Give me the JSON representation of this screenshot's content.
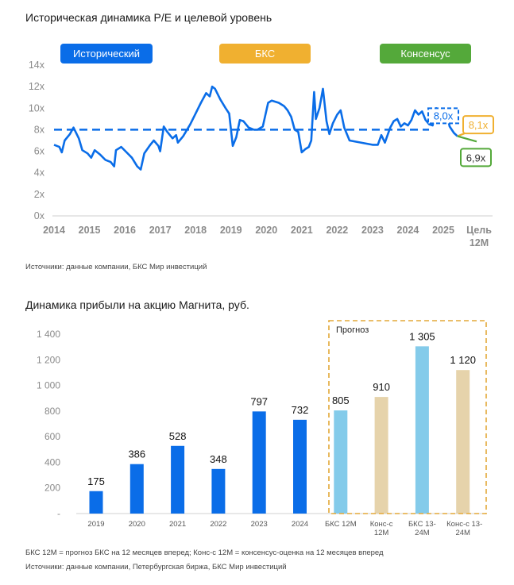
{
  "chart1": {
    "title": "Историческая динамика P/E и целевой уровень",
    "source": "Источники: данные компании, БКС Мир инвестиций",
    "legend": [
      {
        "label": "Исторический",
        "color": "#0a6de8"
      },
      {
        "label": "БКС",
        "color": "#f0b030"
      },
      {
        "label": "Консенсус",
        "color": "#54a93a"
      }
    ],
    "callouts": {
      "current": "8,0x",
      "bks": "8,1x",
      "consensus": "6,9x"
    }
  },
  "chart2": {
    "title": "Динамика прибыли на акцию Магнита, руб.",
    "forecast_label": "Прогноз",
    "notes": [
      "БКС 12М = прогноз БКС на 12 месяцев вперед; Конс-с 12М = консенсус-оценка на 12 месяцев вперед",
      "Источники: данные компании, Петербургская биржа, БКС Мир инвестиций"
    ]
  },
  "chart_data": [
    {
      "type": "line",
      "title": "Историческая динамика P/E и целевой уровень",
      "ylim": [
        0,
        14
      ],
      "yticks": [
        "0x",
        "2x",
        "4x",
        "6x",
        "8x",
        "10x",
        "12x",
        "14x"
      ],
      "xticks": [
        "2014",
        "2015",
        "2016",
        "2017",
        "2018",
        "2019",
        "2020",
        "2021",
        "2022",
        "2023",
        "2024",
        "2025"
      ],
      "xtick_target": [
        "Цель",
        "12М"
      ],
      "average_level": 8.0,
      "series": [
        {
          "name": "Исторический",
          "color": "#0a6de8",
          "points": [
            [
              2014.0,
              6.6
            ],
            [
              2014.15,
              6.4
            ],
            [
              2014.22,
              5.9
            ],
            [
              2014.3,
              7.0
            ],
            [
              2014.45,
              7.6
            ],
            [
              2014.55,
              8.2
            ],
            [
              2014.7,
              7.2
            ],
            [
              2014.8,
              6.1
            ],
            [
              2014.95,
              5.8
            ],
            [
              2015.05,
              5.4
            ],
            [
              2015.15,
              6.1
            ],
            [
              2015.3,
              5.7
            ],
            [
              2015.45,
              5.2
            ],
            [
              2015.6,
              5.0
            ],
            [
              2015.7,
              4.6
            ],
            [
              2015.75,
              6.1
            ],
            [
              2015.9,
              6.4
            ],
            [
              2016.05,
              5.9
            ],
            [
              2016.2,
              5.4
            ],
            [
              2016.35,
              4.6
            ],
            [
              2016.45,
              4.3
            ],
            [
              2016.55,
              5.8
            ],
            [
              2016.72,
              6.6
            ],
            [
              2016.82,
              7.0
            ],
            [
              2016.95,
              6.5
            ],
            [
              2017.0,
              6.0
            ],
            [
              2017.1,
              8.3
            ],
            [
              2017.2,
              7.8
            ],
            [
              2017.35,
              7.2
            ],
            [
              2017.45,
              7.5
            ],
            [
              2017.5,
              6.8
            ],
            [
              2017.65,
              7.4
            ],
            [
              2017.85,
              8.5
            ],
            [
              2018.0,
              9.5
            ],
            [
              2018.15,
              10.5
            ],
            [
              2018.3,
              11.4
            ],
            [
              2018.4,
              11.1
            ],
            [
              2018.47,
              12.0
            ],
            [
              2018.55,
              11.8
            ],
            [
              2018.7,
              10.8
            ],
            [
              2018.85,
              10.0
            ],
            [
              2018.95,
              9.5
            ],
            [
              2019.05,
              6.5
            ],
            [
              2019.15,
              7.3
            ],
            [
              2019.25,
              8.9
            ],
            [
              2019.35,
              8.8
            ],
            [
              2019.5,
              8.2
            ],
            [
              2019.65,
              8.0
            ],
            [
              2019.75,
              8.0
            ],
            [
              2019.9,
              8.3
            ],
            [
              2020.05,
              10.5
            ],
            [
              2020.15,
              10.7
            ],
            [
              2020.35,
              10.5
            ],
            [
              2020.5,
              10.2
            ],
            [
              2020.6,
              9.8
            ],
            [
              2020.7,
              9.2
            ],
            [
              2020.8,
              8.0
            ],
            [
              2020.9,
              7.8
            ],
            [
              2021.0,
              5.9
            ],
            [
              2021.1,
              6.2
            ],
            [
              2021.2,
              6.4
            ],
            [
              2021.27,
              7.0
            ],
            [
              2021.35,
              11.5
            ],
            [
              2021.4,
              9.0
            ],
            [
              2021.5,
              10.0
            ],
            [
              2021.6,
              11.8
            ],
            [
              2021.7,
              8.8
            ],
            [
              2021.78,
              7.6
            ],
            [
              2021.88,
              8.6
            ],
            [
              2022.0,
              9.4
            ],
            [
              2022.1,
              9.8
            ],
            [
              2022.2,
              8.2
            ],
            [
              2022.35,
              7.0
            ],
            [
              2023.0,
              6.6
            ],
            [
              2023.15,
              6.6
            ],
            [
              2023.25,
              7.5
            ],
            [
              2023.35,
              6.8
            ],
            [
              2023.5,
              8.2
            ],
            [
              2023.6,
              8.8
            ],
            [
              2023.7,
              9.0
            ],
            [
              2023.8,
              8.3
            ],
            [
              2023.9,
              8.6
            ],
            [
              2024.0,
              8.4
            ],
            [
              2024.1,
              8.9
            ],
            [
              2024.2,
              9.8
            ],
            [
              2024.3,
              9.4
            ],
            [
              2024.4,
              9.7
            ],
            [
              2024.5,
              8.9
            ],
            [
              2024.6,
              8.5
            ],
            [
              2024.7,
              8.4
            ],
            [
              2024.8,
              10.0
            ],
            [
              2024.9,
              9.5
            ],
            [
              2025.0,
              8.8
            ],
            [
              2025.08,
              9.7
            ],
            [
              2025.18,
              8.3
            ],
            [
              2025.3,
              7.7
            ],
            [
              2025.4,
              7.4
            ]
          ]
        }
      ],
      "targets": [
        {
          "name": "БКС",
          "color": "#f0b030",
          "from": [
            2025.4,
            7.4
          ],
          "value": 8.1
        },
        {
          "name": "Консенсус",
          "color": "#54a93a",
          "from": [
            2025.4,
            7.4
          ],
          "value": 6.9
        }
      ]
    },
    {
      "type": "bar",
      "title": "Динамика прибыли на акцию Магнита, руб.",
      "ylim": [
        0,
        1400
      ],
      "yticks": [
        "-",
        "200",
        "400",
        "600",
        "800",
        "1 000",
        "1 200",
        "1 400"
      ],
      "categories": [
        [
          "2019"
        ],
        [
          "2020"
        ],
        [
          "2021"
        ],
        [
          "2022"
        ],
        [
          "2023"
        ],
        [
          "2024"
        ],
        [
          "БКС 12М"
        ],
        [
          "Конс-с",
          "12М"
        ],
        [
          "БКС 13-",
          "24М"
        ],
        [
          "Конс-с  13-",
          "24М"
        ]
      ],
      "values": [
        175,
        386,
        528,
        348,
        797,
        732,
        805,
        910,
        1305,
        1120
      ],
      "labels": [
        "175",
        "386",
        "528",
        "348",
        "797",
        "732",
        "805",
        "910",
        "1 305",
        "1 120"
      ],
      "colors": [
        "#0a6de8",
        "#0a6de8",
        "#0a6de8",
        "#0a6de8",
        "#0a6de8",
        "#0a6de8",
        "#84cbea",
        "#e6d3ab",
        "#84cbea",
        "#e6d3ab"
      ]
    }
  ]
}
